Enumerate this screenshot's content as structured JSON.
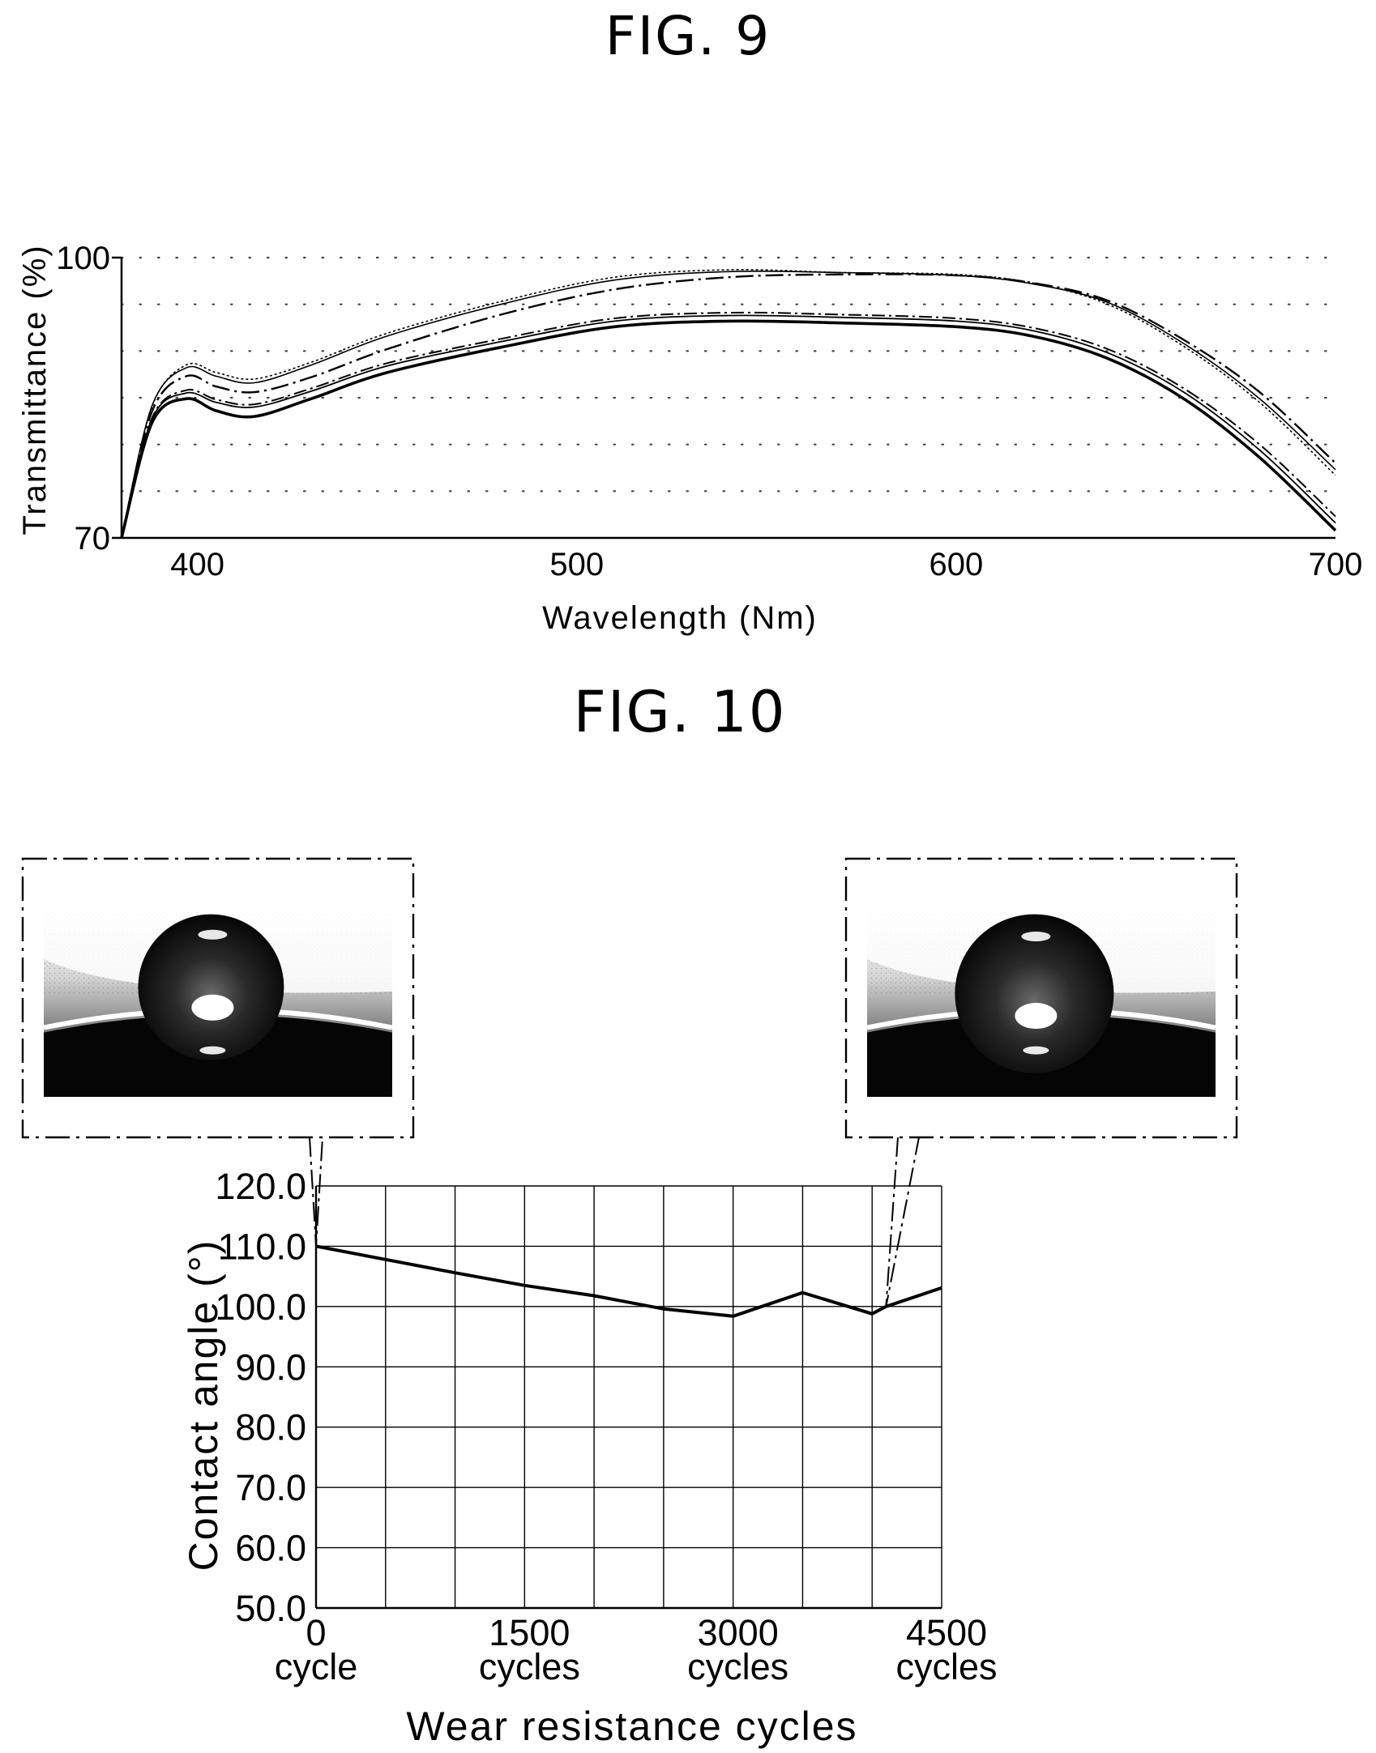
{
  "figures": {
    "fig9_title": "FIG. 9",
    "fig10_title": "FIG. 10"
  },
  "chart_data": [
    {
      "type": "line",
      "xlabel": "Wavelength (Nm)",
      "ylabel": "Transmittance (%)",
      "xlim": [
        380,
        700
      ],
      "ylim": [
        70,
        100
      ],
      "x_ticks": [
        "400",
        "500",
        "600",
        "700"
      ],
      "y_ticks": [
        "70",
        "100"
      ],
      "grid": "dotted-horizontal",
      "series": [
        {
          "style": "thin-dotted",
          "x": [
            380,
            388,
            397,
            405,
            415,
            430,
            450,
            480,
            510,
            540,
            570,
            600,
            620,
            640,
            660,
            680,
            700
          ],
          "y": [
            70,
            84.0,
            88.5,
            87.7,
            87.0,
            88.8,
            91.9,
            95.3,
            97.9,
            98.7,
            98.4,
            98.2,
            97.3,
            95.0,
            90.5,
            84.5,
            76.7
          ]
        },
        {
          "style": "thin-solid",
          "x": [
            380,
            388,
            397,
            405,
            415,
            430,
            450,
            480,
            510,
            540,
            570,
            600,
            620,
            640,
            660,
            680,
            700
          ],
          "y": [
            70,
            84.1,
            88.2,
            87.3,
            86.6,
            88.5,
            91.6,
            95.0,
            97.6,
            98.5,
            98.4,
            98.1,
            97.2,
            95.2,
            90.8,
            84.9,
            77.3
          ]
        },
        {
          "style": "dash-dot",
          "x": [
            380,
            388,
            397,
            405,
            415,
            430,
            450,
            480,
            510,
            540,
            570,
            600,
            620,
            640,
            660,
            680,
            700
          ],
          "y": [
            70,
            83.5,
            87.3,
            86.2,
            85.6,
            87.2,
            90.2,
            93.9,
            96.6,
            97.9,
            98.2,
            98.1,
            97.3,
            95.4,
            91.2,
            85.6,
            78.0
          ]
        },
        {
          "style": "dash-dot-2",
          "x": [
            380,
            388,
            397,
            405,
            415,
            430,
            450,
            480,
            510,
            540,
            570,
            600,
            620,
            640,
            660,
            680,
            700
          ],
          "y": [
            70,
            82.8,
            85.8,
            84.8,
            84.3,
            86.0,
            88.7,
            91.3,
            93.5,
            94.1,
            93.9,
            93.5,
            92.5,
            90.2,
            86.0,
            80.0,
            72.3
          ]
        },
        {
          "style": "thin-solid-2",
          "x": [
            380,
            388,
            397,
            405,
            415,
            430,
            450,
            480,
            510,
            540,
            570,
            600,
            620,
            640,
            660,
            680,
            700
          ],
          "y": [
            70,
            82.7,
            85.5,
            84.5,
            84.0,
            85.7,
            88.4,
            91.0,
            93.2,
            93.8,
            93.6,
            93.2,
            92.2,
            89.8,
            85.6,
            79.4,
            71.6
          ]
        },
        {
          "style": "thick-solid",
          "x": [
            380,
            388,
            397,
            405,
            415,
            430,
            450,
            480,
            510,
            540,
            570,
            600,
            620,
            640,
            660,
            680,
            700
          ],
          "y": [
            70,
            82.3,
            84.9,
            83.6,
            83.0,
            84.9,
            87.7,
            90.4,
            92.6,
            93.2,
            93.0,
            92.6,
            91.6,
            89.2,
            84.9,
            78.6,
            70.8
          ]
        }
      ]
    },
    {
      "type": "line",
      "xlabel": "Wear resistance cycles",
      "ylabel": "Contact angle (°)",
      "xlim": [
        0,
        4500
      ],
      "ylim": [
        50,
        120
      ],
      "x_ticks": [
        {
          "value": "0",
          "unit": "cycle"
        },
        {
          "value": "1500",
          "unit": "cycles"
        },
        {
          "value": "3000",
          "unit": "cycles"
        },
        {
          "value": "4500",
          "unit": "cycles"
        }
      ],
      "y_ticks": [
        "120.0",
        "110.0",
        "100.0",
        "90.0",
        "80.0",
        "70.0",
        "60.0",
        "50.0"
      ],
      "grid": "both",
      "x": [
        0,
        500,
        1000,
        1500,
        2000,
        2500,
        3000,
        3500,
        4000,
        4100,
        4500
      ],
      "y": [
        110.0,
        107.8,
        105.6,
        103.5,
        101.8,
        99.6,
        98.4,
        102.3,
        98.8,
        100.0,
        103.1
      ],
      "insets": [
        {
          "label": "droplet image at 0 cycle",
          "x": 0,
          "y": 110.0
        },
        {
          "label": "droplet image at about 4000 cycles",
          "x": 4100,
          "y": 100.0
        }
      ]
    }
  ]
}
